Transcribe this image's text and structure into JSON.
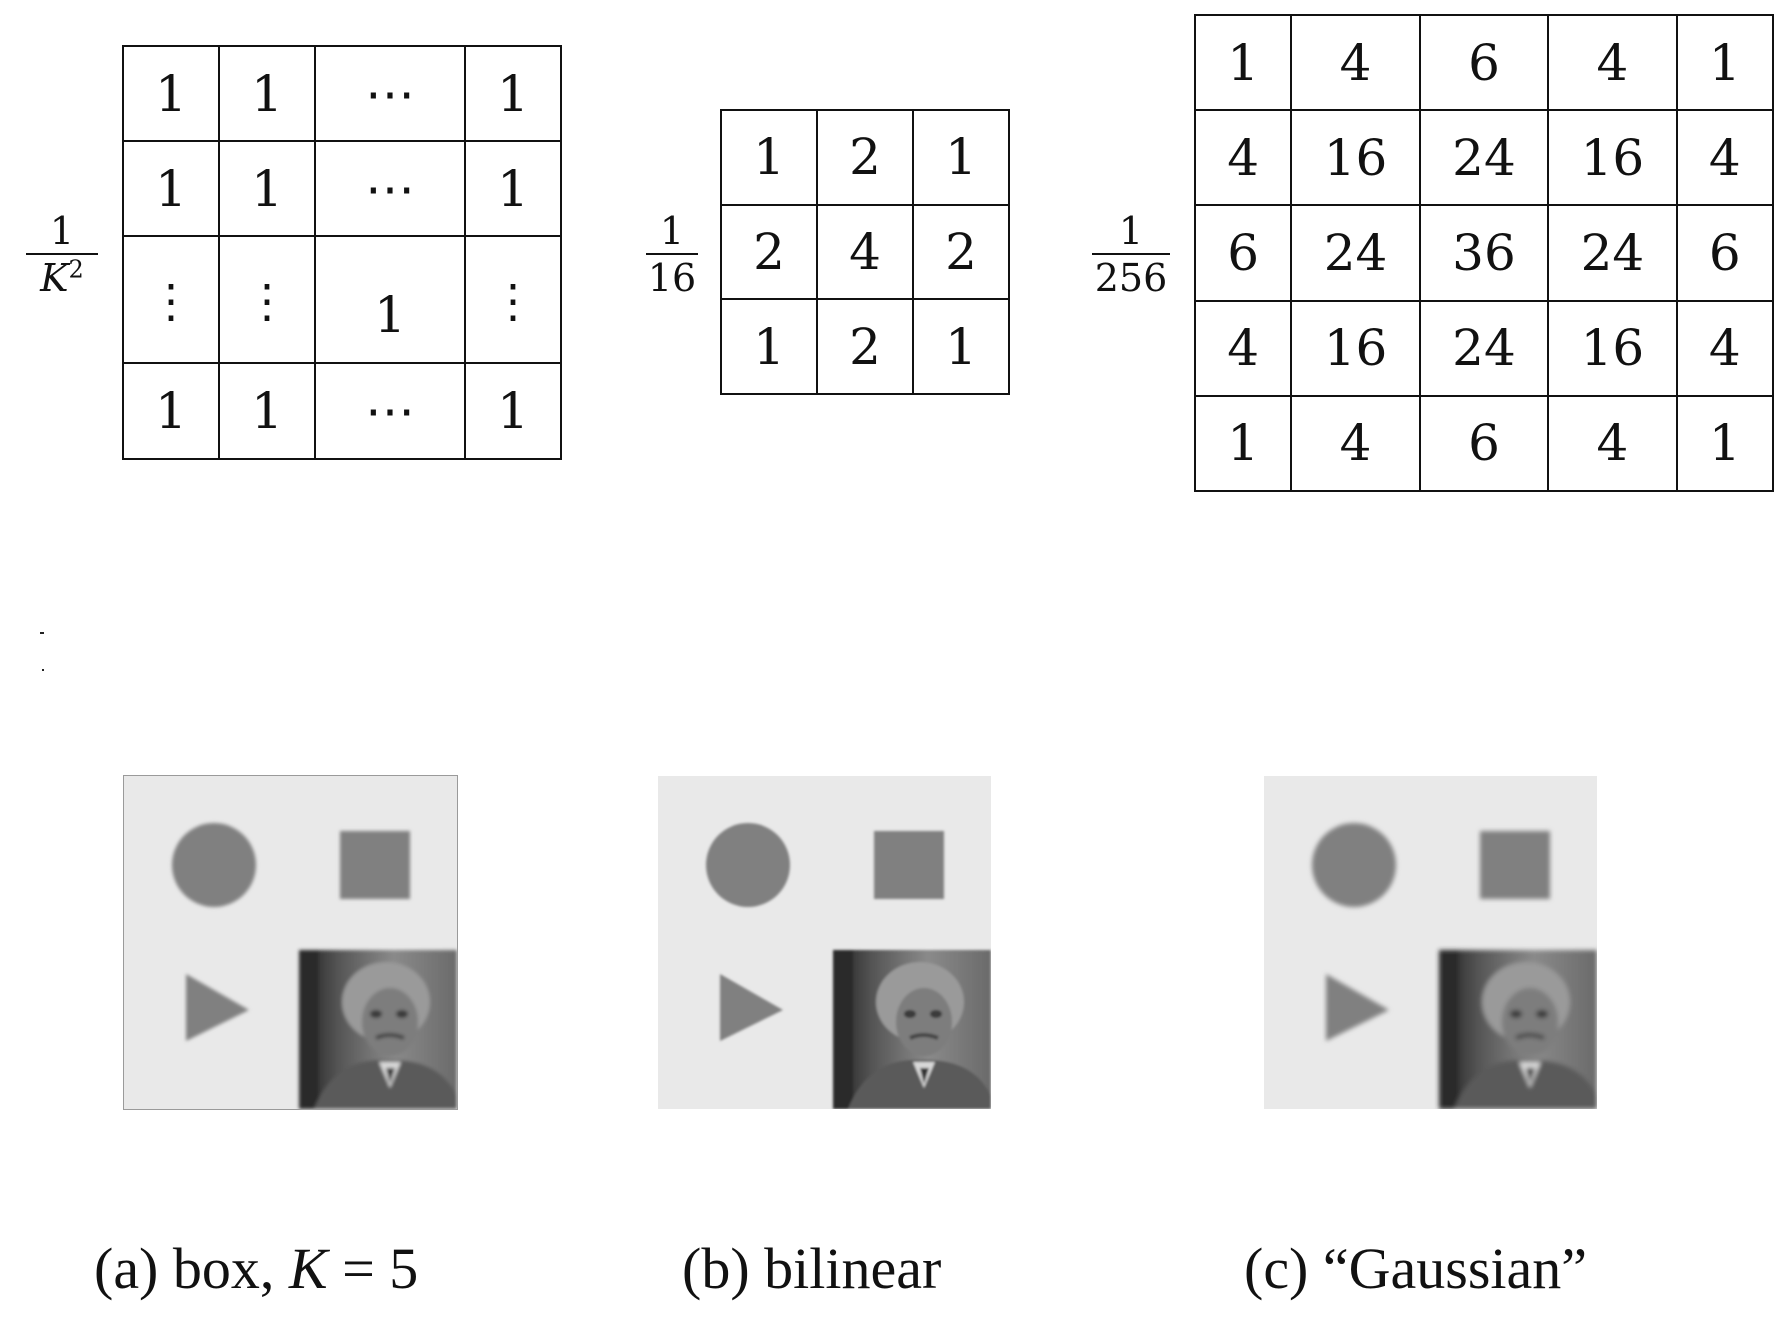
{
  "kernels": [
    {
      "id": "box",
      "scale": {
        "numerator": "1",
        "denominator_var": "K",
        "denominator_exp": "2"
      },
      "rows": [
        [
          "1",
          "1",
          "⋯",
          "1"
        ],
        [
          "1",
          "1",
          "⋯",
          "1"
        ],
        [
          "⋮",
          "⋮",
          "1",
          "⋮"
        ],
        [
          "1",
          "1",
          "⋯",
          "1"
        ]
      ]
    },
    {
      "id": "bilinear",
      "scale": {
        "numerator": "1",
        "denominator": "16"
      },
      "rows": [
        [
          "1",
          "2",
          "1"
        ],
        [
          "2",
          "4",
          "2"
        ],
        [
          "1",
          "2",
          "1"
        ]
      ]
    },
    {
      "id": "gaussian",
      "scale": {
        "numerator": "1",
        "denominator": "256"
      },
      "rows": [
        [
          "1",
          "4",
          "6",
          "4",
          "1"
        ],
        [
          "4",
          "16",
          "24",
          "16",
          "4"
        ],
        [
          "6",
          "24",
          "36",
          "24",
          "6"
        ],
        [
          "4",
          "16",
          "24",
          "16",
          "4"
        ],
        [
          "1",
          "4",
          "6",
          "4",
          "1"
        ]
      ]
    }
  ],
  "panels": [
    {
      "id": "box",
      "caption_prefix": "(a) box, ",
      "caption_var": "K",
      "caption_suffix": " = 5"
    },
    {
      "id": "bilinear",
      "caption_prefix": "(b) bilinear",
      "caption_var": "",
      "caption_suffix": ""
    },
    {
      "id": "gaussian",
      "caption_prefix": "(c) “Gaussian”",
      "caption_var": "",
      "caption_suffix": ""
    }
  ],
  "colors": {
    "image_background": "#e9e9e9",
    "shape_fill": "#808080",
    "photo_dark": "#2a2a2a"
  }
}
